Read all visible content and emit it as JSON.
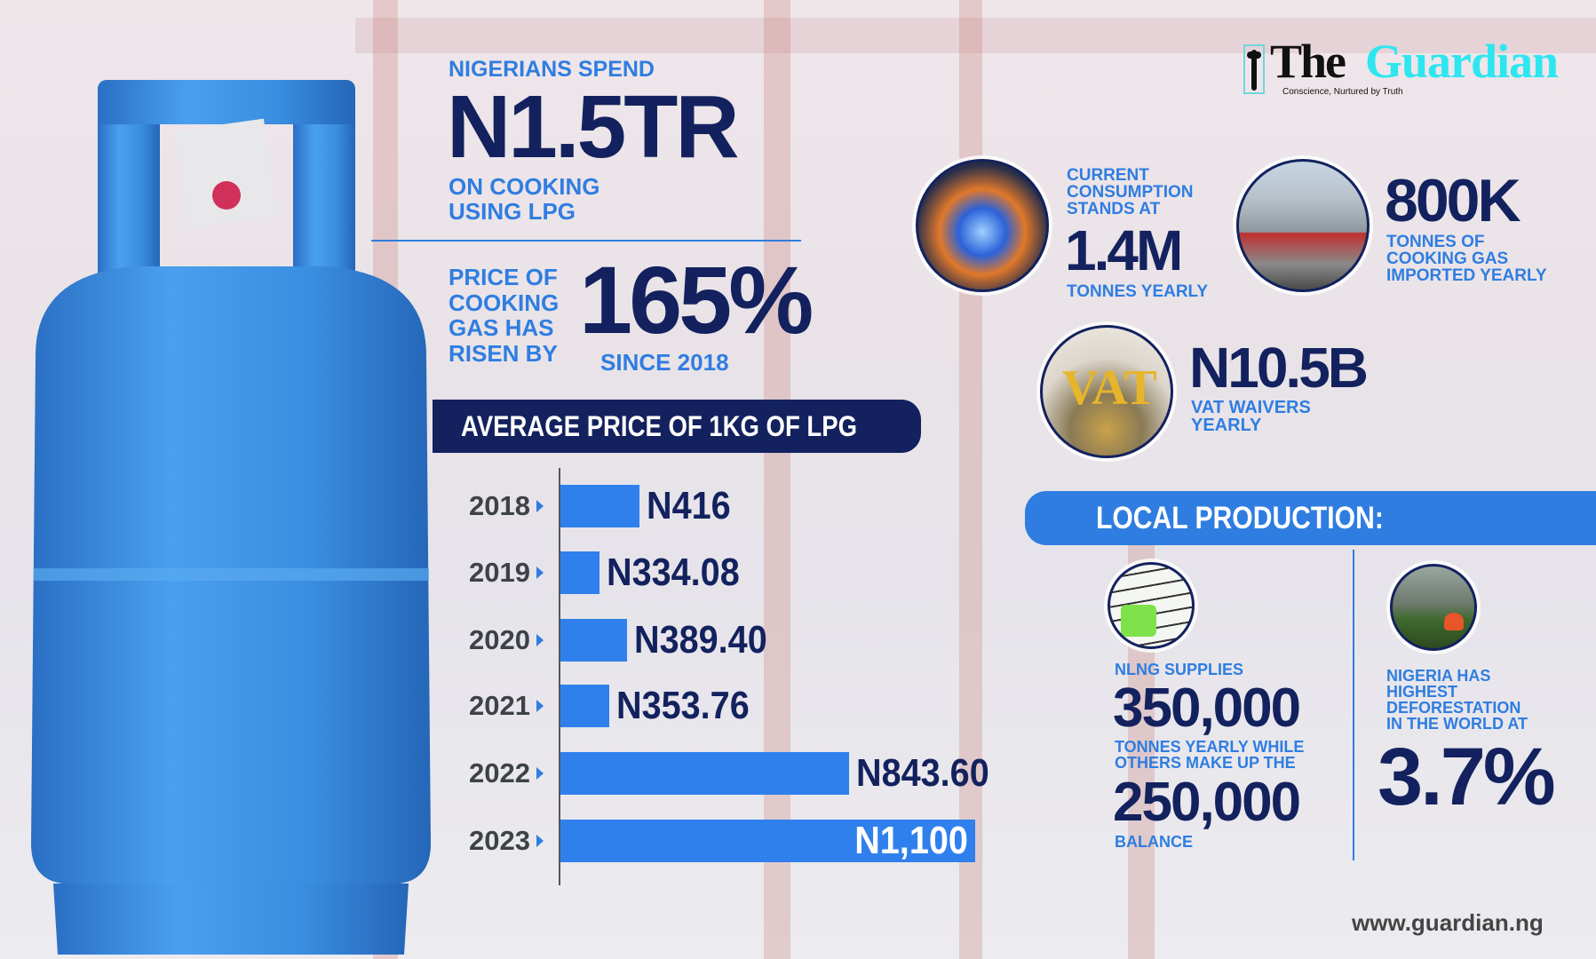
{
  "brand": {
    "logo_the": "The",
    "logo_guardian": "Guardian",
    "tagline": "Conscience, Nurtured by Truth",
    "website": "www.guardian.ng"
  },
  "headline": {
    "intro": "NIGERIANS SPEND",
    "amount": "N1.5TR",
    "outro_line1": "ON COOKING",
    "outro_line2": "USING LPG"
  },
  "price_rise": {
    "lines": [
      "PRICE OF",
      "COOKING",
      "GAS HAS",
      "RISEN BY"
    ],
    "percent": "165%",
    "since": "SINCE 2018"
  },
  "stats": {
    "consumption": {
      "lines": [
        "CURRENT",
        "CONSUMPTION",
        "STANDS AT"
      ],
      "value": "1.4M",
      "unit": "TONNES YEARLY",
      "icon": "gas-stove-flame-icon"
    },
    "imports": {
      "value": "800K",
      "lines": [
        "TONNES OF",
        "COOKING GAS",
        "IMPORTED YEARLY"
      ],
      "icon": "gas-tanker-truck-icon"
    },
    "vat": {
      "value": "N10.5B",
      "lines": [
        "VAT WAIVERS",
        "YEARLY"
      ],
      "icon": "vat-coins-icon"
    }
  },
  "local_production": {
    "title": "LOCAL PRODUCTION:",
    "nlng": {
      "intro": "NLNG SUPPLIES",
      "value1": "350,000",
      "mid_lines": [
        "TONNES YEARLY WHILE",
        "OTHERS MAKE UP THE"
      ],
      "value2": "250,000",
      "outro": "BALANCE",
      "icon": "nlng-plant-icon"
    },
    "deforestation": {
      "lines": [
        "NIGERIA HAS",
        "HIGHEST",
        "DEFORESTATION",
        "IN THE WORLD AT"
      ],
      "value": "3.7%",
      "icon": "forest-fire-icon"
    }
  },
  "colors": {
    "navy": "#13225e",
    "accent_blue": "#2f7de1",
    "bar_blue": "#2f80ed",
    "cylinder_blue": "#3a8de0",
    "logo_cyan": "#2ee6f0"
  },
  "chart_data": {
    "type": "bar",
    "orientation": "horizontal",
    "title": "AVERAGE PRICE OF 1KG OF LPG",
    "categories": [
      "2018",
      "2019",
      "2020",
      "2021",
      "2022",
      "2023"
    ],
    "values": [
      416,
      334.08,
      389.4,
      353.76,
      843.6,
      1100
    ],
    "data_labels": [
      "N416",
      "N334.08",
      "N389.40",
      "N353.76",
      "N843.60",
      "N1,100"
    ],
    "grid": false,
    "legend": "none"
  }
}
